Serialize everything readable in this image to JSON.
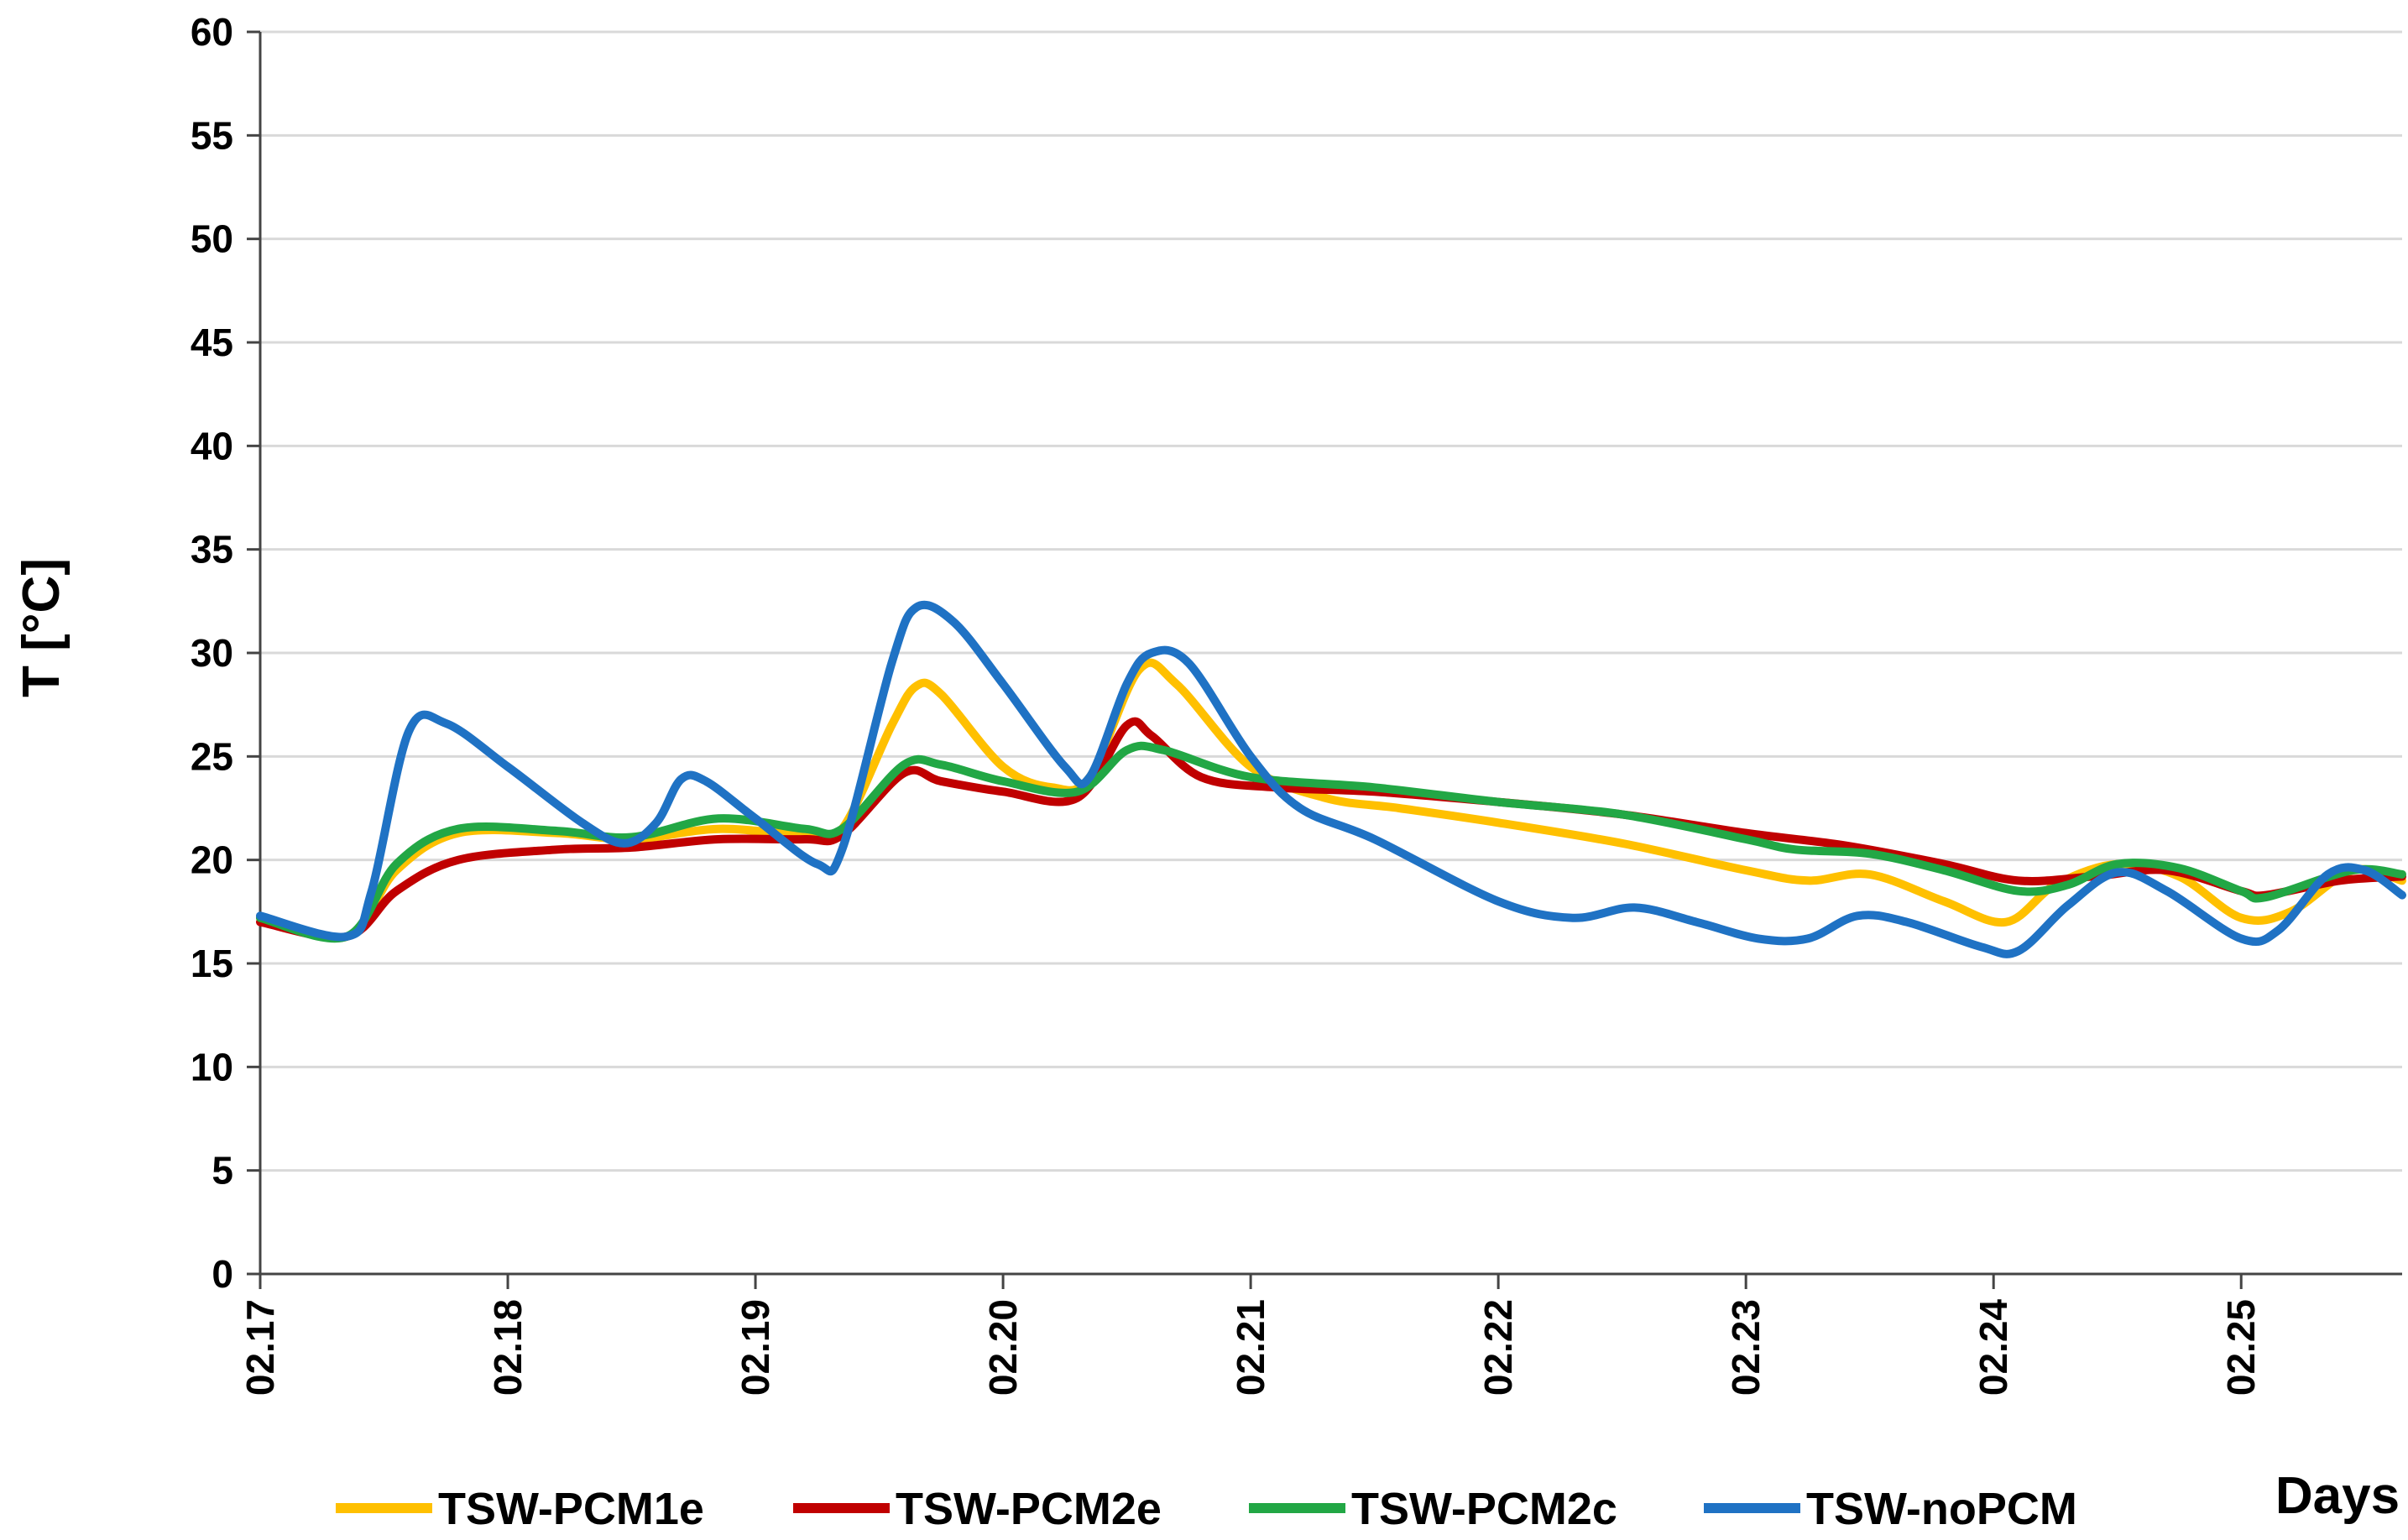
{
  "chart_data": {
    "type": "line",
    "title": "",
    "xlabel": "Days",
    "ylabel": "T [°C]",
    "ylim": [
      0,
      60
    ],
    "xlim": [
      0,
      8.65
    ],
    "grid": true,
    "legend_position": "bottom",
    "yticks": [
      "0",
      "5",
      "10",
      "15",
      "20",
      "25",
      "30",
      "35",
      "40",
      "45",
      "50",
      "55",
      "60"
    ],
    "xticks": [
      {
        "label": "02.17",
        "x": 0
      },
      {
        "label": "02.18",
        "x": 1
      },
      {
        "label": "02.19",
        "x": 2
      },
      {
        "label": "02.20",
        "x": 3
      },
      {
        "label": "02.21",
        "x": 4
      },
      {
        "label": "02.22",
        "x": 5
      },
      {
        "label": "02.23",
        "x": 6
      },
      {
        "label": "02.24",
        "x": 7
      },
      {
        "label": "02.25",
        "x": 8
      }
    ],
    "series": [
      {
        "name": "TSW-PCM1e",
        "color": "#FFC000",
        "points": [
          [
            0,
            17.2
          ],
          [
            0.35,
            16.3
          ],
          [
            0.55,
            19.5
          ],
          [
            0.8,
            21.3
          ],
          [
            1.2,
            21.3
          ],
          [
            1.5,
            21.0
          ],
          [
            1.85,
            21.5
          ],
          [
            2.2,
            21.2
          ],
          [
            2.35,
            21.5
          ],
          [
            2.55,
            26.5
          ],
          [
            2.65,
            28.4
          ],
          [
            2.75,
            28.0
          ],
          [
            3.0,
            24.5
          ],
          [
            3.2,
            23.5
          ],
          [
            3.35,
            24.0
          ],
          [
            3.55,
            29.2
          ],
          [
            3.7,
            28.5
          ],
          [
            4.0,
            24.5
          ],
          [
            4.3,
            23.0
          ],
          [
            4.6,
            22.5
          ],
          [
            5.0,
            21.8
          ],
          [
            5.5,
            20.8
          ],
          [
            6.0,
            19.5
          ],
          [
            6.25,
            19.0
          ],
          [
            6.5,
            19.3
          ],
          [
            6.8,
            18.0
          ],
          [
            7.05,
            17.0
          ],
          [
            7.25,
            18.8
          ],
          [
            7.5,
            19.8
          ],
          [
            7.75,
            19.2
          ],
          [
            8.0,
            17.2
          ],
          [
            8.2,
            17.5
          ],
          [
            8.45,
            19.5
          ],
          [
            8.65,
            19.0
          ]
        ]
      },
      {
        "name": "TSW-PCM2e",
        "color": "#C00000",
        "points": [
          [
            0,
            17.0
          ],
          [
            0.35,
            16.3
          ],
          [
            0.55,
            18.5
          ],
          [
            0.8,
            20.0
          ],
          [
            1.2,
            20.5
          ],
          [
            1.5,
            20.6
          ],
          [
            1.85,
            21.0
          ],
          [
            2.2,
            21.0
          ],
          [
            2.35,
            21.2
          ],
          [
            2.6,
            24.2
          ],
          [
            2.75,
            23.8
          ],
          [
            3.0,
            23.3
          ],
          [
            3.3,
            23.0
          ],
          [
            3.5,
            26.5
          ],
          [
            3.6,
            26.0
          ],
          [
            3.8,
            24.0
          ],
          [
            4.1,
            23.5
          ],
          [
            4.5,
            23.3
          ],
          [
            5.0,
            22.8
          ],
          [
            5.5,
            22.2
          ],
          [
            6.0,
            21.3
          ],
          [
            6.4,
            20.7
          ],
          [
            6.8,
            19.8
          ],
          [
            7.1,
            19.0
          ],
          [
            7.4,
            19.2
          ],
          [
            7.7,
            19.5
          ],
          [
            8.0,
            18.5
          ],
          [
            8.1,
            18.3
          ],
          [
            8.4,
            19.0
          ],
          [
            8.65,
            19.2
          ]
        ]
      },
      {
        "name": "TSW-PCM2c",
        "color": "#22A745",
        "points": [
          [
            0,
            17.2
          ],
          [
            0.35,
            16.3
          ],
          [
            0.55,
            19.8
          ],
          [
            0.8,
            21.5
          ],
          [
            1.2,
            21.4
          ],
          [
            1.5,
            21.1
          ],
          [
            1.85,
            22.0
          ],
          [
            2.2,
            21.5
          ],
          [
            2.35,
            21.5
          ],
          [
            2.6,
            24.6
          ],
          [
            2.75,
            24.6
          ],
          [
            3.0,
            23.8
          ],
          [
            3.3,
            23.3
          ],
          [
            3.5,
            25.3
          ],
          [
            3.65,
            25.3
          ],
          [
            4.0,
            24.0
          ],
          [
            4.5,
            23.5
          ],
          [
            5.0,
            22.8
          ],
          [
            5.5,
            22.2
          ],
          [
            6.0,
            21.0
          ],
          [
            6.2,
            20.5
          ],
          [
            6.5,
            20.3
          ],
          [
            6.8,
            19.5
          ],
          [
            7.1,
            18.5
          ],
          [
            7.3,
            18.8
          ],
          [
            7.5,
            19.8
          ],
          [
            7.75,
            19.6
          ],
          [
            8.0,
            18.5
          ],
          [
            8.1,
            18.2
          ],
          [
            8.45,
            19.5
          ],
          [
            8.65,
            19.3
          ]
        ]
      },
      {
        "name": "TSW-noPCM",
        "color": "#1F72C4",
        "points": [
          [
            0,
            17.3
          ],
          [
            0.35,
            16.3
          ],
          [
            0.45,
            18.5
          ],
          [
            0.6,
            26.2
          ],
          [
            0.75,
            26.6
          ],
          [
            1.0,
            24.5
          ],
          [
            1.3,
            21.8
          ],
          [
            1.47,
            20.8
          ],
          [
            1.6,
            21.8
          ],
          [
            1.7,
            23.9
          ],
          [
            1.8,
            23.8
          ],
          [
            2.0,
            22.0
          ],
          [
            2.25,
            19.8
          ],
          [
            2.35,
            20.5
          ],
          [
            2.55,
            29.5
          ],
          [
            2.65,
            32.2
          ],
          [
            2.8,
            31.5
          ],
          [
            3.0,
            28.5
          ],
          [
            3.25,
            24.5
          ],
          [
            3.35,
            24.0
          ],
          [
            3.5,
            28.5
          ],
          [
            3.6,
            30.0
          ],
          [
            3.75,
            29.5
          ],
          [
            4.0,
            25.0
          ],
          [
            4.2,
            22.5
          ],
          [
            4.5,
            21.0
          ],
          [
            5.0,
            18.0
          ],
          [
            5.3,
            17.2
          ],
          [
            5.55,
            17.7
          ],
          [
            5.8,
            17.0
          ],
          [
            6.05,
            16.2
          ],
          [
            6.25,
            16.2
          ],
          [
            6.45,
            17.3
          ],
          [
            6.65,
            17.0
          ],
          [
            6.95,
            15.8
          ],
          [
            7.1,
            15.6
          ],
          [
            7.3,
            17.8
          ],
          [
            7.5,
            19.4
          ],
          [
            7.7,
            18.5
          ],
          [
            8.0,
            16.2
          ],
          [
            8.15,
            16.6
          ],
          [
            8.35,
            19.3
          ],
          [
            8.5,
            19.5
          ],
          [
            8.65,
            18.3
          ]
        ]
      }
    ]
  }
}
